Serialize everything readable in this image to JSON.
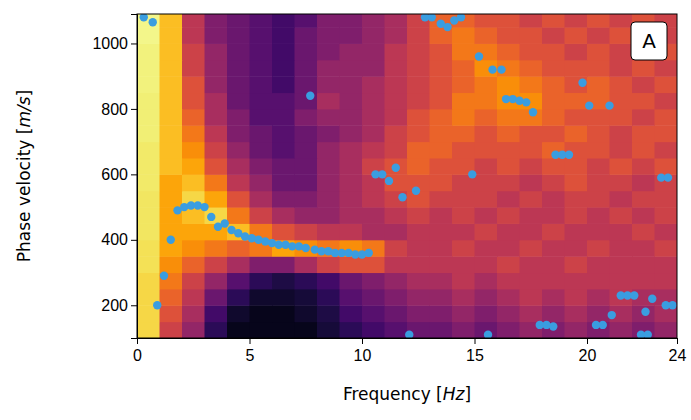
{
  "chart_data": {
    "type": "heatmap",
    "x_label": "Frequency [Hz]",
    "y_label": "Phase velocity [m/s]",
    "panel_label": "A",
    "xlim": [
      0,
      24
    ],
    "ylim": [
      100,
      1090
    ],
    "xticks": [
      0,
      5,
      10,
      15,
      20,
      24
    ],
    "yticks": [
      200,
      400,
      600,
      800,
      1000
    ],
    "heatmap": {
      "x_edges": [
        0,
        1,
        2,
        3,
        4,
        5,
        6,
        7,
        8,
        9,
        10,
        11,
        12,
        13,
        14,
        15,
        16,
        17,
        18,
        19,
        20,
        21,
        22,
        23,
        24
      ],
      "y_edges": [
        100,
        150,
        200,
        250,
        300,
        350,
        400,
        450,
        500,
        550,
        600,
        650,
        700,
        750,
        800,
        850,
        900,
        950,
        1000,
        1050,
        1100
      ],
      "color_range": [
        0,
        1
      ],
      "z": [
        [
          0.9,
          0.55,
          0.4,
          0.15,
          0.05,
          0.05,
          0.05,
          0.05,
          0.1,
          0.15,
          0.2,
          0.25,
          0.3,
          0.3,
          0.35,
          0.3,
          0.35,
          0.4,
          0.35,
          0.4,
          0.35,
          0.4,
          0.35,
          0.4
        ],
        [
          0.9,
          0.6,
          0.45,
          0.2,
          0.08,
          0.05,
          0.05,
          0.08,
          0.12,
          0.2,
          0.25,
          0.3,
          0.35,
          0.35,
          0.4,
          0.35,
          0.4,
          0.45,
          0.4,
          0.45,
          0.4,
          0.45,
          0.4,
          0.45
        ],
        [
          0.9,
          0.65,
          0.5,
          0.3,
          0.15,
          0.08,
          0.08,
          0.1,
          0.15,
          0.25,
          0.3,
          0.35,
          0.4,
          0.4,
          0.45,
          0.4,
          0.45,
          0.5,
          0.45,
          0.5,
          0.45,
          0.5,
          0.45,
          0.45
        ],
        [
          0.9,
          0.7,
          0.55,
          0.4,
          0.25,
          0.15,
          0.12,
          0.15,
          0.2,
          0.3,
          0.35,
          0.4,
          0.45,
          0.45,
          0.5,
          0.45,
          0.5,
          0.5,
          0.5,
          0.5,
          0.5,
          0.5,
          0.5,
          0.5
        ],
        [
          0.92,
          0.75,
          0.65,
          0.55,
          0.45,
          0.35,
          0.35,
          0.45,
          0.55,
          0.6,
          0.6,
          0.5,
          0.5,
          0.5,
          0.5,
          0.5,
          0.55,
          0.5,
          0.5,
          0.55,
          0.5,
          0.5,
          0.5,
          0.5
        ],
        [
          0.92,
          0.8,
          0.75,
          0.7,
          0.65,
          0.7,
          0.8,
          0.75,
          0.7,
          0.75,
          0.7,
          0.55,
          0.5,
          0.5,
          0.55,
          0.5,
          0.5,
          0.55,
          0.5,
          0.5,
          0.55,
          0.5,
          0.5,
          0.55
        ],
        [
          0.93,
          0.8,
          0.8,
          0.8,
          0.85,
          0.7,
          0.6,
          0.55,
          0.5,
          0.5,
          0.45,
          0.45,
          0.5,
          0.5,
          0.5,
          0.55,
          0.5,
          0.5,
          0.55,
          0.5,
          0.5,
          0.5,
          0.55,
          0.5
        ],
        [
          0.93,
          0.8,
          0.85,
          0.9,
          0.7,
          0.55,
          0.45,
          0.4,
          0.4,
          0.45,
          0.45,
          0.5,
          0.55,
          0.5,
          0.55,
          0.5,
          0.55,
          0.5,
          0.5,
          0.55,
          0.5,
          0.55,
          0.5,
          0.55
        ],
        [
          0.93,
          0.8,
          0.9,
          0.8,
          0.6,
          0.45,
          0.35,
          0.35,
          0.4,
          0.45,
          0.5,
          0.55,
          0.6,
          0.55,
          0.55,
          0.55,
          0.5,
          0.55,
          0.5,
          0.55,
          0.55,
          0.5,
          0.55,
          0.55
        ],
        [
          0.94,
          0.8,
          0.85,
          0.7,
          0.5,
          0.4,
          0.3,
          0.3,
          0.4,
          0.45,
          0.5,
          0.6,
          0.6,
          0.6,
          0.55,
          0.55,
          0.55,
          0.5,
          0.55,
          0.6,
          0.55,
          0.55,
          0.5,
          0.55
        ],
        [
          0.94,
          0.85,
          0.8,
          0.6,
          0.45,
          0.35,
          0.3,
          0.3,
          0.4,
          0.45,
          0.55,
          0.6,
          0.65,
          0.6,
          0.6,
          0.55,
          0.6,
          0.55,
          0.6,
          0.6,
          0.55,
          0.6,
          0.55,
          0.6
        ],
        [
          0.94,
          0.85,
          0.75,
          0.55,
          0.4,
          0.3,
          0.25,
          0.3,
          0.4,
          0.45,
          0.5,
          0.55,
          0.65,
          0.65,
          0.6,
          0.6,
          0.6,
          0.6,
          0.65,
          0.6,
          0.6,
          0.55,
          0.6,
          0.55
        ],
        [
          0.95,
          0.85,
          0.7,
          0.5,
          0.35,
          0.3,
          0.25,
          0.3,
          0.35,
          0.4,
          0.45,
          0.55,
          0.6,
          0.65,
          0.65,
          0.6,
          0.65,
          0.6,
          0.6,
          0.65,
          0.6,
          0.55,
          0.6,
          0.6
        ],
        [
          0.95,
          0.85,
          0.65,
          0.45,
          0.35,
          0.25,
          0.25,
          0.35,
          0.4,
          0.4,
          0.45,
          0.5,
          0.6,
          0.65,
          0.7,
          0.65,
          0.7,
          0.7,
          0.65,
          0.6,
          0.6,
          0.6,
          0.55,
          0.6
        ],
        [
          0.95,
          0.85,
          0.6,
          0.45,
          0.3,
          0.25,
          0.25,
          0.3,
          0.45,
          0.4,
          0.45,
          0.5,
          0.55,
          0.6,
          0.7,
          0.7,
          0.75,
          0.75,
          0.65,
          0.65,
          0.65,
          0.6,
          0.6,
          0.55
        ],
        [
          0.96,
          0.85,
          0.6,
          0.4,
          0.3,
          0.25,
          0.2,
          0.3,
          0.4,
          0.4,
          0.45,
          0.5,
          0.55,
          0.6,
          0.65,
          0.7,
          0.75,
          0.7,
          0.65,
          0.6,
          0.65,
          0.6,
          0.55,
          0.6
        ],
        [
          0.96,
          0.85,
          0.55,
          0.4,
          0.3,
          0.25,
          0.2,
          0.3,
          0.4,
          0.4,
          0.4,
          0.5,
          0.55,
          0.6,
          0.65,
          0.75,
          0.7,
          0.65,
          0.6,
          0.6,
          0.6,
          0.55,
          0.6,
          0.55
        ],
        [
          0.96,
          0.85,
          0.55,
          0.4,
          0.3,
          0.25,
          0.2,
          0.3,
          0.35,
          0.4,
          0.4,
          0.5,
          0.55,
          0.6,
          0.7,
          0.7,
          0.65,
          0.6,
          0.6,
          0.55,
          0.6,
          0.55,
          0.55,
          0.6
        ],
        [
          0.97,
          0.85,
          0.5,
          0.35,
          0.3,
          0.25,
          0.2,
          0.3,
          0.35,
          0.35,
          0.4,
          0.45,
          0.55,
          0.65,
          0.7,
          0.65,
          0.6,
          0.6,
          0.55,
          0.6,
          0.55,
          0.6,
          0.55,
          0.55
        ],
        [
          0.97,
          0.85,
          0.5,
          0.35,
          0.3,
          0.25,
          0.2,
          0.25,
          0.35,
          0.35,
          0.4,
          0.45,
          0.55,
          0.65,
          0.65,
          0.6,
          0.6,
          0.55,
          0.6,
          0.55,
          0.6,
          0.55,
          0.6,
          0.55
        ]
      ]
    },
    "series": [
      {
        "type": "scatter",
        "color": "#3a9de0",
        "marker": "circle",
        "x": [
          0.3,
          0.7,
          0.9,
          1.2,
          1.5,
          1.8,
          2.1,
          2.4,
          2.7,
          3.0,
          3.3,
          3.6,
          3.9,
          4.2,
          4.5,
          4.8,
          5.1,
          5.4,
          5.7,
          6.0,
          6.3,
          6.6,
          6.9,
          7.2,
          7.5,
          7.7,
          7.9,
          8.2,
          8.5,
          8.8,
          9.1,
          9.4,
          9.7,
          10.0,
          10.3,
          10.6,
          10.9,
          11.2,
          11.5,
          11.8,
          12.1,
          12.4,
          12.8,
          13.1,
          13.5,
          13.8,
          14.1,
          14.4,
          14.9,
          15.2,
          15.6,
          15.8,
          16.2,
          16.4,
          16.7,
          17.0,
          17.3,
          17.6,
          17.9,
          18.2,
          18.5,
          18.6,
          18.9,
          19.2,
          19.8,
          20.1,
          20.4,
          20.7,
          21.0,
          21.1,
          21.5,
          21.8,
          22.1,
          22.4,
          22.6,
          22.7,
          22.9,
          23.3,
          23.5,
          23.6,
          23.8
        ],
        "values": [
          1080,
          1065,
          200,
          290,
          400,
          490,
          500,
          505,
          505,
          500,
          470,
          440,
          450,
          430,
          420,
          410,
          405,
          400,
          395,
          390,
          385,
          385,
          380,
          380,
          375,
          840,
          370,
          365,
          365,
          360,
          360,
          360,
          355,
          355,
          360,
          600,
          600,
          580,
          620,
          530,
          110,
          550,
          1080,
          1080,
          1060,
          1050,
          1070,
          1080,
          600,
          960,
          110,
          920,
          920,
          830,
          830,
          825,
          820,
          790,
          140,
          140,
          135,
          660,
          660,
          660,
          880,
          810,
          140,
          140,
          810,
          170,
          230,
          230,
          230,
          110,
          180,
          110,
          220,
          590,
          200,
          590,
          200
        ]
      }
    ]
  }
}
